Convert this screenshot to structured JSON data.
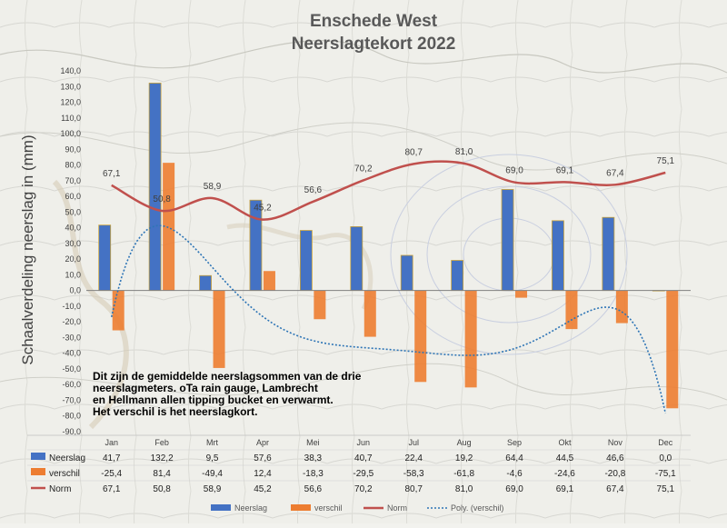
{
  "chart_data": {
    "type": "bar",
    "title_line1": "Enschede West",
    "title_line2": "Neerslagtekort 2022",
    "ylabel": "Schaalverdeling neerslag in (mm)",
    "ylim": [
      -90,
      140
    ],
    "ytick_step": 10,
    "categories": [
      "Jan",
      "Feb",
      "Mrt",
      "Apr",
      "Mei",
      "Jun",
      "Jul",
      "Aug",
      "Sep",
      "Okt",
      "Nov",
      "Dec"
    ],
    "series": [
      {
        "name": "Neerslag",
        "values": [
          41.7,
          132.2,
          9.5,
          57.6,
          38.3,
          40.7,
          22.4,
          19.2,
          64.4,
          44.5,
          46.6,
          0.0
        ],
        "color": "#4472c4"
      },
      {
        "name": "verschil",
        "values": [
          -25.4,
          81.4,
          -49.4,
          12.4,
          -18.3,
          -29.5,
          -58.3,
          -61.8,
          -4.6,
          -24.6,
          -20.8,
          -75.1
        ],
        "color": "#ed7d31"
      },
      {
        "name": "Norm",
        "values": [
          67.1,
          50.8,
          58.9,
          45.2,
          56.6,
          70.2,
          80.7,
          81.0,
          69.0,
          69.1,
          67.4,
          75.1
        ],
        "color": "#c0504d"
      }
    ],
    "trendline": {
      "name": "Poly. (verschil)",
      "color": "#2e75b6"
    },
    "table": {
      "rows": [
        {
          "name": "Neerslag",
          "values": [
            "41,7",
            "132,2",
            "9,5",
            "57,6",
            "38,3",
            "40,7",
            "22,4",
            "19,2",
            "64,4",
            "44,5",
            "46,6",
            "0,0"
          ]
        },
        {
          "name": "verschil",
          "values": [
            "-25,4",
            "81,4",
            "-49,4",
            "12,4",
            "-18,3",
            "-29,5",
            "-58,3",
            "-61,8",
            "-4,6",
            "-24,6",
            "-20,8",
            "-75,1"
          ]
        },
        {
          "name": "Norm",
          "values": [
            "67,1",
            "50,8",
            "58,9",
            "45,2",
            "56,6",
            "70,2",
            "80,7",
            "81,0",
            "69,0",
            "69,1",
            "67,4",
            "75,1"
          ]
        }
      ]
    },
    "norm_labels": [
      "67,1",
      "50,8",
      "58,9",
      "45,2",
      "56,6",
      "70,2",
      "80,7",
      "81,0",
      "69,0",
      "69,1",
      "67,4",
      "75,1"
    ],
    "annotation": [
      "Dit zijn de gemiddelde neerslagsommen van de drie",
      "neerslagmeters. oTa rain gauge, Lambrecht",
      "en Hellmann allen tipping bucket en verwarmt.",
      "Het verschil is het neerslagkort."
    ],
    "legend": {
      "placement": "bottom",
      "items": [
        "Neerslag",
        "verschil",
        "Norm",
        "Poly. (verschil)"
      ]
    },
    "grid": false
  }
}
